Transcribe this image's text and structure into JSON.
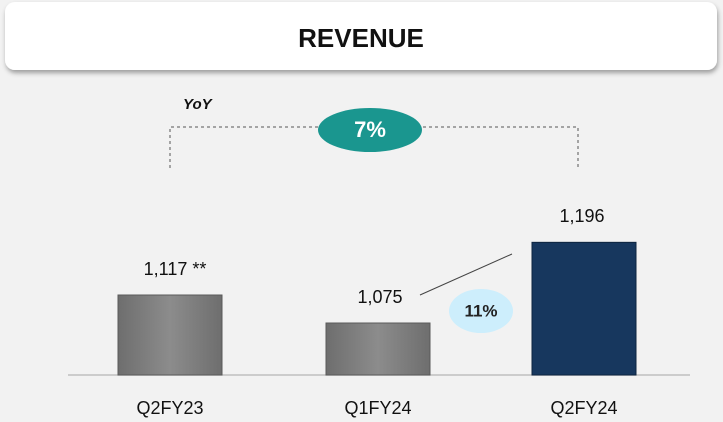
{
  "chart_data": {
    "type": "bar",
    "title": "REVENUE",
    "categories": [
      "Q2FY23",
      "Q1FY24",
      "Q2FY24"
    ],
    "values": [
      1117,
      1075,
      1196
    ],
    "value_labels": [
      "1,117 **",
      "1,075",
      "1,196"
    ],
    "colors": [
      "#7f7f7f",
      "#7f7f7f",
      "#17375e"
    ],
    "ylim": [
      997,
      1297
    ],
    "annotations": {
      "yoy_label": "YoY",
      "yoy_growth": "7%",
      "qoq_growth": "11%"
    }
  }
}
